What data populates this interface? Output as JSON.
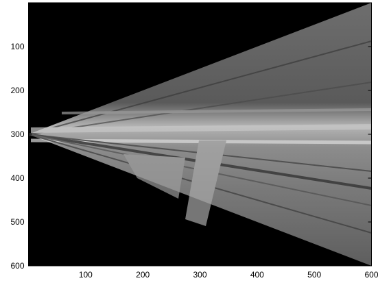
{
  "chart_data": {
    "type": "image",
    "xlim": [
      0,
      600
    ],
    "ylim": [
      0,
      600
    ],
    "y_reversed": true,
    "xticks": [
      100,
      200,
      300,
      400,
      500,
      600
    ],
    "yticks": [
      100,
      200,
      300,
      400,
      500,
      600
    ]
  }
}
